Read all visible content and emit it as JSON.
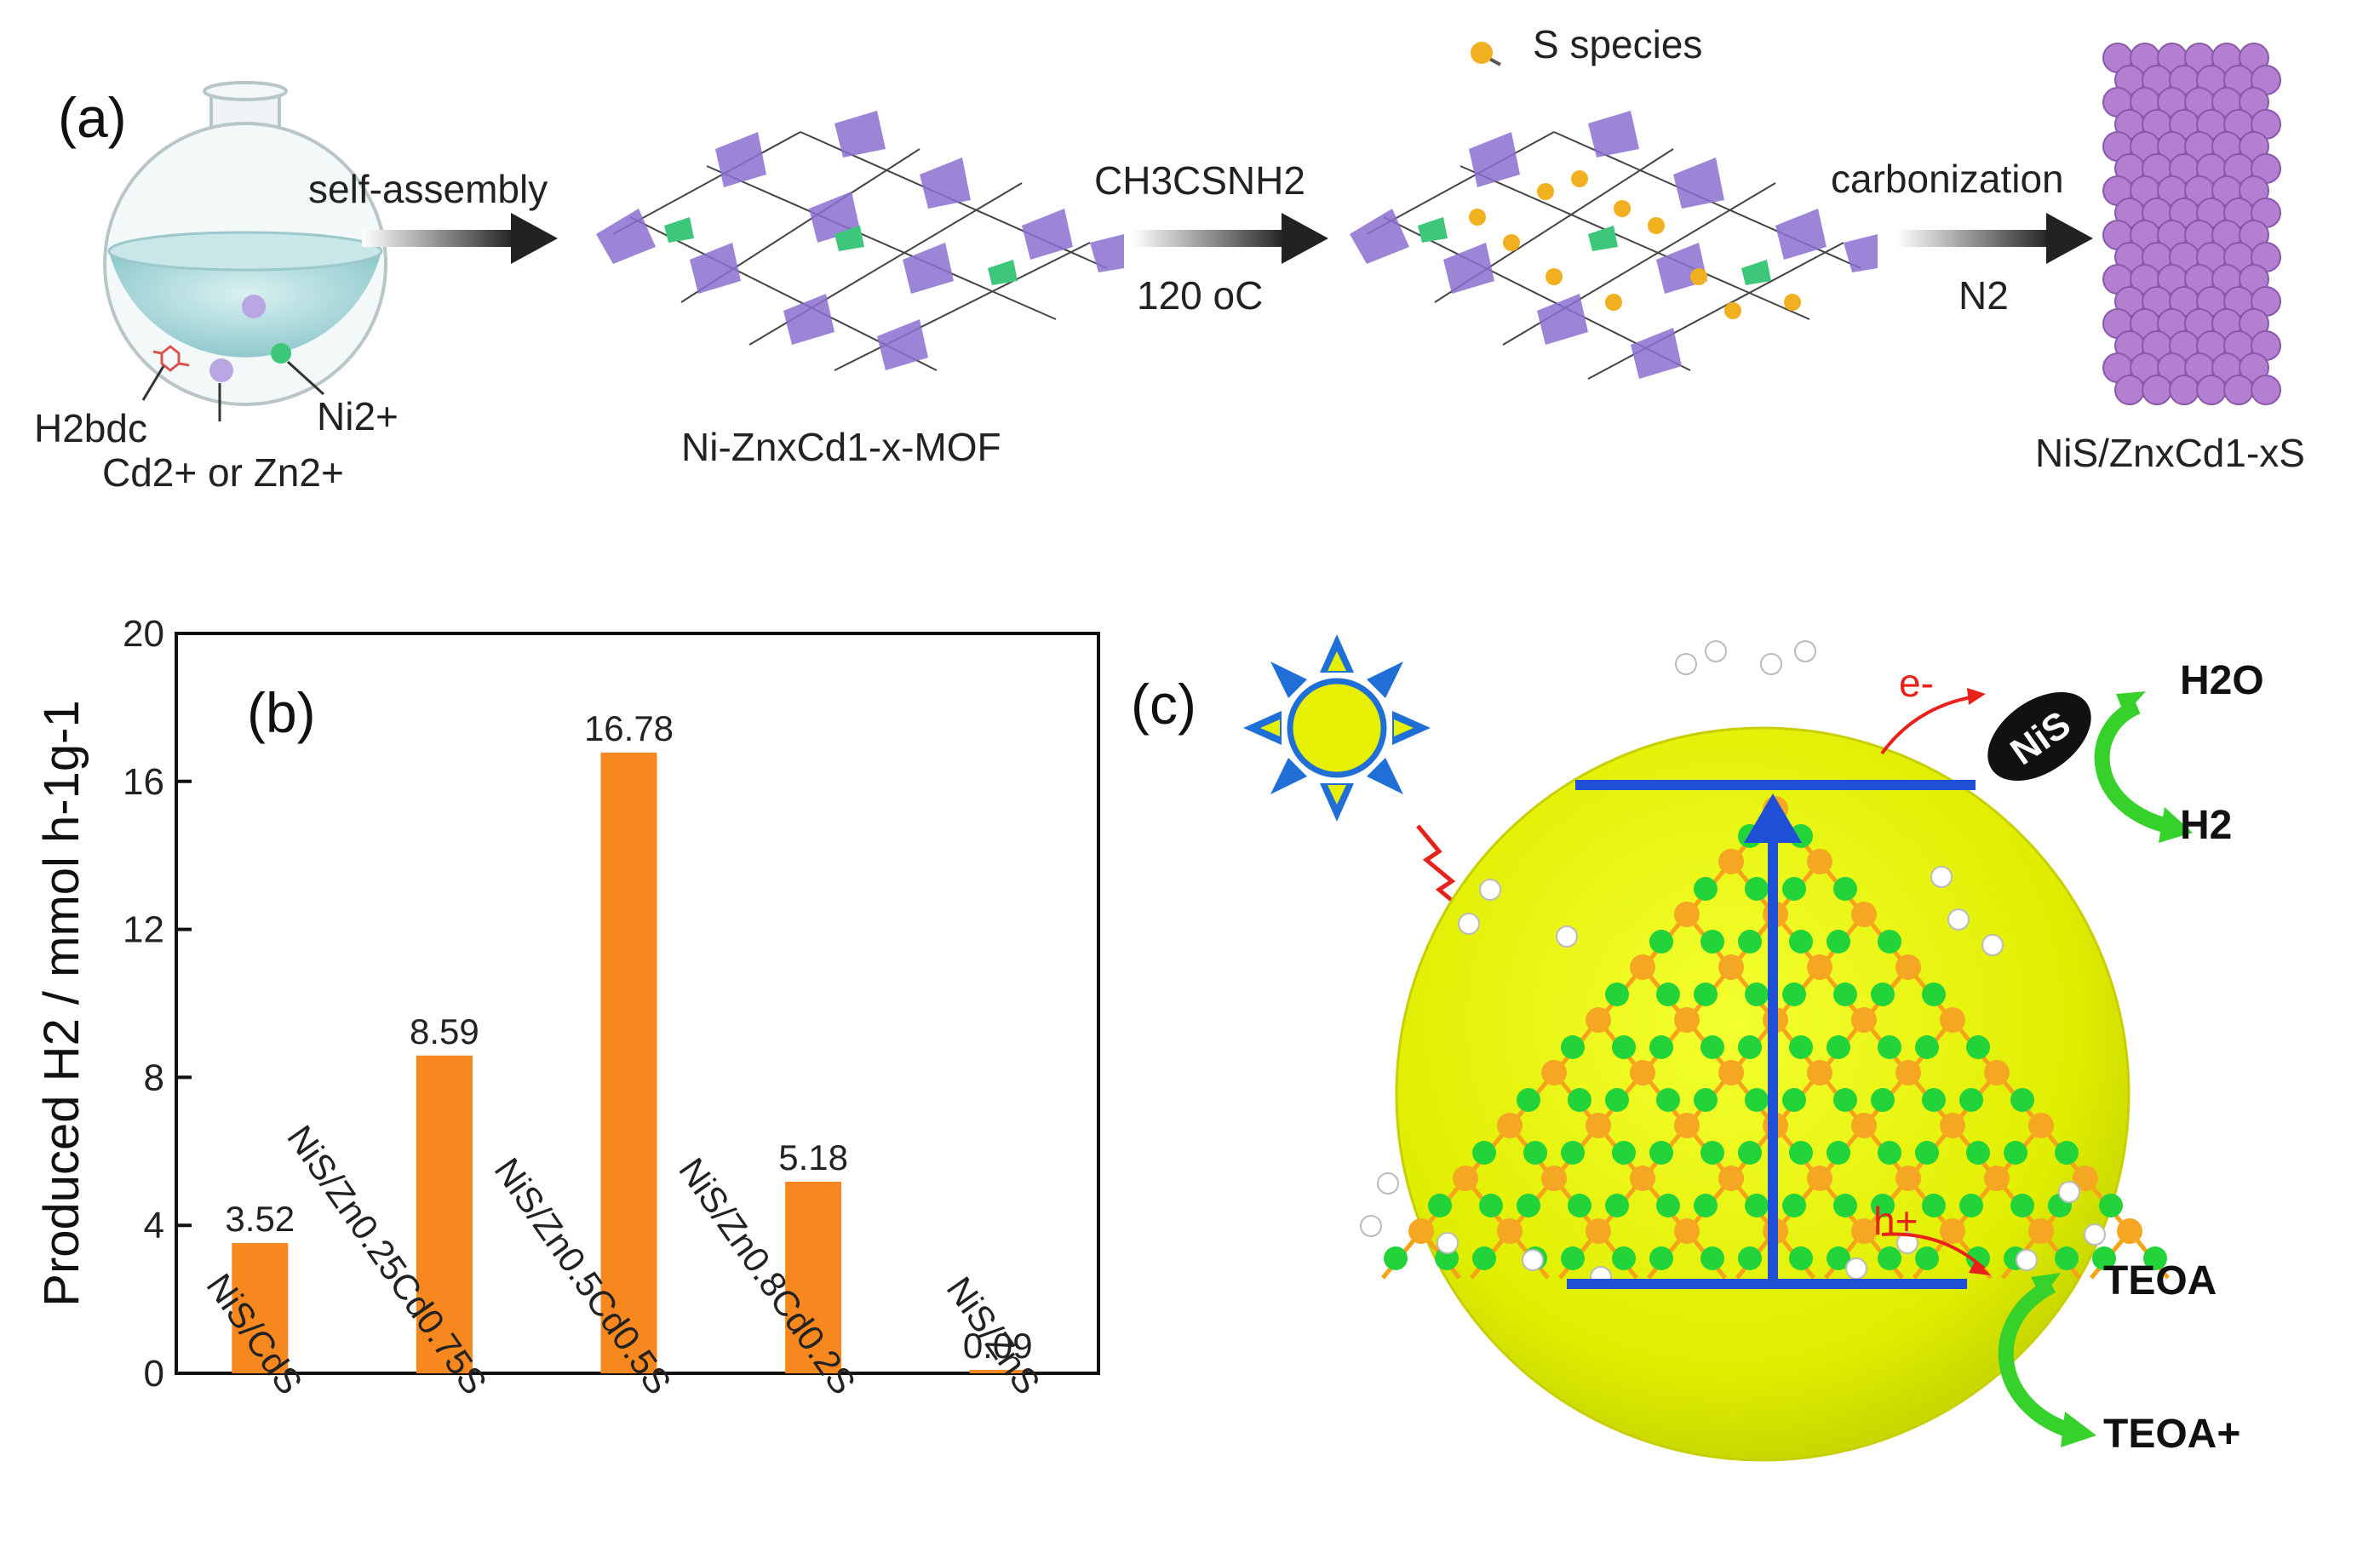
{
  "panel_a": {
    "label": "(a)",
    "s_species_legend": "S species",
    "step1_label": "self-assembly",
    "flask_labels": {
      "h2bdc": "H2bdc",
      "ni": "Ni2+",
      "cd_or_zn": "Cd2+ or Zn2+"
    },
    "mof_label": "Ni-ZnxCd1-x-MOF",
    "step2_top": "CH3CSNH2",
    "step2_bottom": "120 oC",
    "step3_top": "carbonization",
    "step3_bottom": "N2",
    "product_label": "NiS/ZnxCd1-xS"
  },
  "chart_data": {
    "type": "bar",
    "panel_label": "(b)",
    "categories": [
      "NiS/CdS",
      "NiS/Zn0.25Cd0.75S",
      "NiS/Zn0.5Cd0.5S",
      "NiS/Zn0.8Cd0.2S",
      "NiS/ZnS"
    ],
    "values": [
      3.52,
      8.59,
      16.78,
      5.18,
      0.09
    ],
    "value_labels": [
      "3.52",
      "8.59",
      "16.78",
      "5.18",
      "0.09"
    ],
    "ylabel": "Produced H2 / mmol h-1g-1",
    "yticks": [
      0,
      4,
      8,
      12,
      16,
      20
    ],
    "ylim": [
      0,
      20
    ],
    "bar_color": "#f7881f",
    "grid": false
  },
  "panel_c": {
    "label": "(c)",
    "electron": "e-",
    "hole": "h+",
    "cocatalyst": "NiS",
    "h2o": "H2O",
    "h2": "H2",
    "teoa": "TEOA",
    "teoa_plus": "TEOA+",
    "colors": {
      "sphere": "#e6f000",
      "band": "#1f4fd6",
      "arrow_green": "#36d12a",
      "arrow_red": "#e8221b"
    }
  }
}
